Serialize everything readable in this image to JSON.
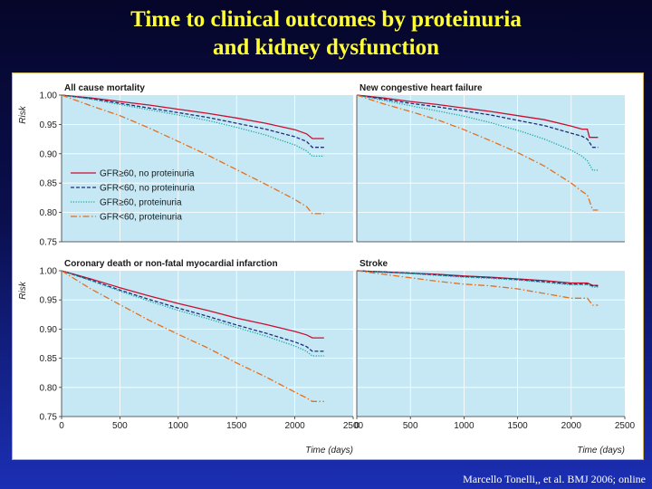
{
  "slide": {
    "title_line1": "Time to clinical outcomes by proteinuria",
    "title_line2": "and kidney dysfunction",
    "citation": "Marcello Tonelli,, et al. BMJ  2006; online"
  },
  "colors": {
    "panel_background": "#c6e8f5",
    "title_text": "#ffff33",
    "series": {
      "GFR≥60, no proteinuria": "#c8102e",
      "GFR<60, no proteinuria": "#1f2f7a",
      "GFR≥60, proteinuria": "#13a89e",
      "GFR<60, proteinuria": "#e2701f"
    }
  },
  "chart_data": [
    {
      "type": "line",
      "title": "All cause mortality",
      "xlabel": "",
      "ylabel": "Risk",
      "xlim": [
        0,
        2500
      ],
      "ylim": [
        0.75,
        1.0
      ],
      "y_ticks": [
        "1.00",
        "0.95",
        "0.90",
        "0.85",
        "0.80",
        "0.75"
      ],
      "x_ticks": [],
      "grid": true,
      "legend": {
        "placement": "left",
        "entries": [
          "GFR≥60, no proteinuria",
          "GFR<60, no proteinuria",
          "GFR≥60, proteinuria",
          "GFR<60, proteinuria"
        ]
      },
      "series": [
        {
          "name": "GFR≥60, no proteinuria",
          "style": "solid",
          "x": [
            0,
            250,
            500,
            750,
            1000,
            1250,
            1500,
            1750,
            2000,
            2100,
            2150,
            2250
          ],
          "values": [
            1.0,
            0.995,
            0.989,
            0.983,
            0.976,
            0.969,
            0.961,
            0.952,
            0.941,
            0.934,
            0.926,
            0.926
          ]
        },
        {
          "name": "GFR<60, no proteinuria",
          "style": "dashed",
          "x": [
            0,
            250,
            500,
            750,
            1000,
            1250,
            1500,
            1750,
            2000,
            2100,
            2150,
            2250
          ],
          "values": [
            1.0,
            0.994,
            0.986,
            0.978,
            0.97,
            0.962,
            0.952,
            0.942,
            0.929,
            0.921,
            0.911,
            0.911
          ]
        },
        {
          "name": "GFR≥60, proteinuria",
          "style": "dotted",
          "x": [
            0,
            250,
            500,
            750,
            1000,
            1250,
            1500,
            1750,
            2000,
            2100,
            2150,
            2250
          ],
          "values": [
            1.0,
            0.993,
            0.984,
            0.975,
            0.966,
            0.957,
            0.945,
            0.932,
            0.915,
            0.905,
            0.896,
            0.896
          ]
        },
        {
          "name": "GFR<60, proteinuria",
          "style": "dashdot",
          "x": [
            0,
            250,
            500,
            750,
            1000,
            1250,
            1500,
            1750,
            2000,
            2100,
            2150,
            2250
          ],
          "values": [
            1.0,
            0.982,
            0.965,
            0.944,
            0.921,
            0.898,
            0.873,
            0.848,
            0.822,
            0.81,
            0.798,
            0.798
          ]
        }
      ]
    },
    {
      "type": "line",
      "title": "New congestive heart failure",
      "xlabel": "",
      "ylabel": "",
      "xlim": [
        0,
        2500
      ],
      "ylim": [
        0.75,
        1.0
      ],
      "y_ticks": [],
      "x_ticks": [],
      "grid": true,
      "series": [
        {
          "name": "GFR≥60, no proteinuria",
          "style": "solid",
          "x": [
            0,
            250,
            500,
            750,
            1000,
            1250,
            1500,
            1750,
            2000,
            2100,
            2150,
            2170,
            2200,
            2250
          ],
          "values": [
            1.0,
            0.995,
            0.989,
            0.984,
            0.978,
            0.972,
            0.965,
            0.958,
            0.947,
            0.942,
            0.942,
            0.928,
            0.928,
            0.928
          ]
        },
        {
          "name": "GFR<60, no proteinuria",
          "style": "dashed",
          "x": [
            0,
            250,
            500,
            750,
            1000,
            1250,
            1500,
            1750,
            2000,
            2100,
            2150,
            2200,
            2250
          ],
          "values": [
            1.0,
            0.993,
            0.986,
            0.98,
            0.973,
            0.966,
            0.957,
            0.948,
            0.935,
            0.93,
            0.925,
            0.911,
            0.911
          ]
        },
        {
          "name": "GFR≥60, proteinuria",
          "style": "dotted",
          "x": [
            0,
            250,
            500,
            750,
            1000,
            1250,
            1500,
            1750,
            2000,
            2100,
            2150,
            2200,
            2250
          ],
          "values": [
            1.0,
            0.991,
            0.982,
            0.973,
            0.964,
            0.953,
            0.94,
            0.925,
            0.906,
            0.896,
            0.888,
            0.872,
            0.872
          ]
        },
        {
          "name": "GFR<60, proteinuria",
          "style": "dashdot",
          "x": [
            0,
            250,
            500,
            750,
            1000,
            1250,
            1500,
            1750,
            2000,
            2100,
            2150,
            2200,
            2250
          ],
          "values": [
            1.0,
            0.985,
            0.972,
            0.958,
            0.941,
            0.922,
            0.902,
            0.879,
            0.85,
            0.836,
            0.83,
            0.804,
            0.804
          ]
        }
      ]
    },
    {
      "type": "line",
      "title": "Coronary death or non-fatal myocardial infarction",
      "xlabel": "Time (days)",
      "ylabel": "Risk",
      "xlim": [
        0,
        2500
      ],
      "ylim": [
        0.75,
        1.0
      ],
      "y_ticks": [
        "1.00",
        "0.95",
        "0.90",
        "0.85",
        "0.80",
        "0.75"
      ],
      "x_ticks": [
        "0",
        "500",
        "1000",
        "1500",
        "2000",
        "2500"
      ],
      "grid": true,
      "series": [
        {
          "name": "GFR≥60, no proteinuria",
          "style": "solid",
          "x": [
            0,
            250,
            500,
            750,
            1000,
            1250,
            1500,
            1750,
            2000,
            2100,
            2150,
            2250
          ],
          "values": [
            1.0,
            0.986,
            0.971,
            0.957,
            0.944,
            0.932,
            0.919,
            0.908,
            0.896,
            0.89,
            0.885,
            0.885
          ]
        },
        {
          "name": "GFR<60, no proteinuria",
          "style": "dashed",
          "x": [
            0,
            250,
            500,
            750,
            1000,
            1250,
            1500,
            1750,
            2000,
            2100,
            2150,
            2250
          ],
          "values": [
            1.0,
            0.984,
            0.967,
            0.951,
            0.936,
            0.922,
            0.907,
            0.893,
            0.878,
            0.87,
            0.862,
            0.862
          ]
        },
        {
          "name": "GFR≥60, proteinuria",
          "style": "dotted",
          "x": [
            0,
            250,
            500,
            750,
            1000,
            1250,
            1500,
            1750,
            2000,
            2100,
            2150,
            2250
          ],
          "values": [
            1.0,
            0.983,
            0.965,
            0.948,
            0.932,
            0.918,
            0.903,
            0.888,
            0.871,
            0.862,
            0.854,
            0.854
          ]
        },
        {
          "name": "GFR<60, proteinuria",
          "style": "dashdot",
          "x": [
            0,
            250,
            500,
            750,
            1000,
            1250,
            1500,
            1750,
            2000,
            2100,
            2150,
            2250
          ],
          "values": [
            1.0,
            0.969,
            0.942,
            0.915,
            0.891,
            0.868,
            0.842,
            0.818,
            0.792,
            0.782,
            0.776,
            0.776
          ]
        }
      ]
    },
    {
      "type": "line",
      "title": "Stroke",
      "xlabel": "Time (days)",
      "ylabel": "",
      "xlim": [
        0,
        2500
      ],
      "ylim": [
        0.75,
        1.0
      ],
      "y_ticks": [],
      "x_ticks": [
        "0",
        "500",
        "1000",
        "1500",
        "2000",
        "2500"
      ],
      "grid": true,
      "series": [
        {
          "name": "GFR≥60, no proteinuria",
          "style": "solid",
          "x": [
            0,
            250,
            500,
            750,
            1000,
            1250,
            1500,
            1750,
            2000,
            2100,
            2150,
            2200,
            2250
          ],
          "values": [
            1.0,
            0.998,
            0.996,
            0.994,
            0.991,
            0.989,
            0.986,
            0.983,
            0.979,
            0.979,
            0.979,
            0.975,
            0.975
          ]
        },
        {
          "name": "GFR<60, no proteinuria",
          "style": "dashed",
          "x": [
            0,
            250,
            500,
            750,
            1000,
            1250,
            1500,
            1750,
            2000,
            2100,
            2150,
            2200,
            2250
          ],
          "values": [
            1.0,
            0.998,
            0.996,
            0.993,
            0.99,
            0.988,
            0.985,
            0.981,
            0.977,
            0.977,
            0.977,
            0.974,
            0.974
          ]
        },
        {
          "name": "GFR≥60, proteinuria",
          "style": "dotted",
          "x": [
            0,
            250,
            500,
            750,
            1000,
            1250,
            1500,
            1750,
            2000,
            2100,
            2150,
            2200,
            2250
          ],
          "values": [
            1.0,
            0.997,
            0.995,
            0.992,
            0.989,
            0.987,
            0.984,
            0.98,
            0.976,
            0.976,
            0.976,
            0.972,
            0.972
          ]
        },
        {
          "name": "GFR<60, proteinuria",
          "style": "dashdot",
          "x": [
            0,
            250,
            500,
            750,
            1000,
            1250,
            1500,
            1750,
            2000,
            2100,
            2150,
            2200,
            2250
          ],
          "values": [
            1.0,
            0.994,
            0.988,
            0.982,
            0.977,
            0.974,
            0.969,
            0.961,
            0.953,
            0.953,
            0.953,
            0.941,
            0.941
          ]
        }
      ]
    }
  ]
}
